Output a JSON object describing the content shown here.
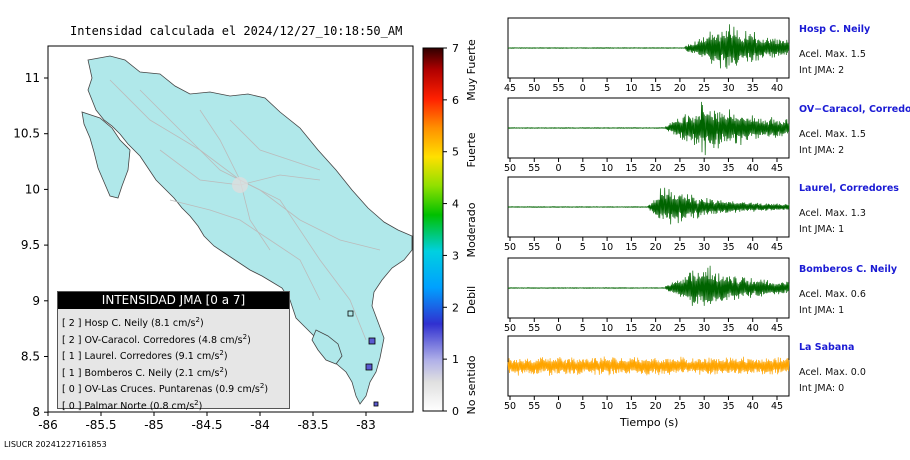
{
  "map": {
    "title": "Intensidad calculada el 2024/12/27_10:18:50_AM",
    "x_ticks": [
      "-86",
      "-85.5",
      "-85",
      "-84.5",
      "-84",
      "-83.5",
      "-83"
    ],
    "y_ticks": [
      "11",
      "10.5",
      "10",
      "9.5",
      "9",
      "8.5",
      "8"
    ],
    "footer_id": "LISUCR 20241227161853"
  },
  "legend": {
    "title": "INTENSIDAD JMA [0 a 7]",
    "items": [
      {
        "pre": "[ 2 ] Hosp C. Neily (8.1 cm/s",
        "sup": "2",
        "post": ")"
      },
      {
        "pre": "[ 2 ] OV-Caracol. Corredores (4.8 cm/s",
        "sup": "2",
        "post": ")"
      },
      {
        "pre": "[ 1 ] Laurel. Corredores (9.1 cm/s",
        "sup": "2",
        "post": ")"
      },
      {
        "pre": "[ 1 ] Bomberos C. Neily (2.1 cm/s",
        "sup": "2",
        "post": ")"
      },
      {
        "pre": "[ 0 ] OV-Las Cruces. Puntarenas (0.9 cm/s",
        "sup": "2",
        "post": ")"
      },
      {
        "pre": "[ 0 ] Palmar Norte (0.8 cm/s",
        "sup": "2",
        "post": ")"
      }
    ]
  },
  "colorbar": {
    "ticks": [
      "0",
      "1",
      "2",
      "3",
      "4",
      "5",
      "6",
      "7"
    ],
    "labels": [
      "No sentido",
      "Debil",
      "Moderado",
      "Fuerte",
      "Muy Fuerte"
    ]
  },
  "xaxis_title": "Tiempo (s)",
  "stations": [
    {
      "name": "Hosp C. Neily",
      "accel": "Acel. Max. 1.5",
      "jma": "Int JMA: 2",
      "ticks": [
        "45",
        "50",
        "55",
        "0",
        "5",
        "10",
        "15",
        "20",
        "25",
        "30",
        "35",
        "40"
      ],
      "color": "#006400"
    },
    {
      "name": "OV−Caracol, Corredore",
      "accel": "Acel. Max. 1.5",
      "jma": "Int JMA: 2",
      "ticks": [
        "50",
        "55",
        "0",
        "5",
        "10",
        "15",
        "20",
        "25",
        "30",
        "35",
        "40",
        "45"
      ],
      "color": "#006400"
    },
    {
      "name": "Laurel, Corredores",
      "accel": "Acel. Max. 1.3",
      "jma": "Int JMA: 1",
      "ticks": [
        "50",
        "55",
        "0",
        "5",
        "10",
        "15",
        "20",
        "25",
        "30",
        "35",
        "40",
        "45"
      ],
      "color": "#006400"
    },
    {
      "name": "Bomberos C. Neily",
      "accel": "Acel. Max. 0.6",
      "jma": "Int JMA: 1",
      "ticks": [
        "50",
        "55",
        "0",
        "5",
        "10",
        "15",
        "20",
        "25",
        "30",
        "35",
        "40",
        "45"
      ],
      "color": "#006400"
    },
    {
      "name": "La Sabana",
      "accel": "Acel. Max. 0.0",
      "jma": "Int JMA: 0",
      "ticks": [
        "50",
        "55",
        "0",
        "5",
        "10",
        "15",
        "20",
        "25",
        "30",
        "35",
        "40",
        "45"
      ],
      "color": "#FFA500"
    }
  ],
  "chart_data": [
    {
      "type": "heatmap",
      "title": "Intensidad calculada el 2024/12/27_10:18:50_AM",
      "xlabel": "",
      "ylabel": "",
      "xlim": [
        -86,
        -82.6
      ],
      "ylim": [
        8,
        11.3
      ],
      "colorbar_range": [
        0,
        7
      ],
      "colorbar_labels": [
        "No sentido",
        "Debil",
        "Moderado",
        "Fuerte",
        "Muy Fuerte"
      ],
      "legend_title": "INTENSIDAD JMA [0 a 7]",
      "legend_position": "bottom-left",
      "stations": [
        {
          "name": "Hosp C. Neily",
          "jma": 2,
          "pga": 8.1
        },
        {
          "name": "OV-Caracol. Corredores",
          "jma": 2,
          "pga": 4.8
        },
        {
          "name": "Laurel. Corredores",
          "jma": 1,
          "pga": 9.1
        },
        {
          "name": "Bomberos C. Neily",
          "jma": 1,
          "pga": 2.1
        },
        {
          "name": "OV-Las Cruces. Puntarenas",
          "jma": 0,
          "pga": 0.9
        },
        {
          "name": "Palmar Norte",
          "jma": 0,
          "pga": 0.8
        }
      ]
    },
    {
      "type": "line",
      "title": "Hosp C. Neily",
      "xlabel": "Tiempo (s)",
      "acel_max": 1.5,
      "int_jma": 2,
      "signal_onset_tick": "23",
      "peak_tick": "30"
    },
    {
      "type": "line",
      "title": "OV−Caracol, Corredore",
      "xlabel": "Tiempo (s)",
      "acel_max": 1.5,
      "int_jma": 2,
      "signal_onset_tick": "19",
      "peak_tick": "25"
    },
    {
      "type": "line",
      "title": "Laurel, Corredores",
      "xlabel": "Tiempo (s)",
      "acel_max": 1.3,
      "int_jma": 1,
      "signal_onset_tick": "19",
      "peak_tick": "22"
    },
    {
      "type": "line",
      "title": "Bomberos C. Neily",
      "xlabel": "Tiempo (s)",
      "acel_max": 0.6,
      "int_jma": 1,
      "signal_onset_tick": "22",
      "peak_tick": "30"
    },
    {
      "type": "line",
      "title": "La Sabana",
      "xlabel": "Tiempo (s)",
      "acel_max": 0.0,
      "int_jma": 0,
      "signal_onset_tick": "",
      "peak_tick": ""
    }
  ]
}
